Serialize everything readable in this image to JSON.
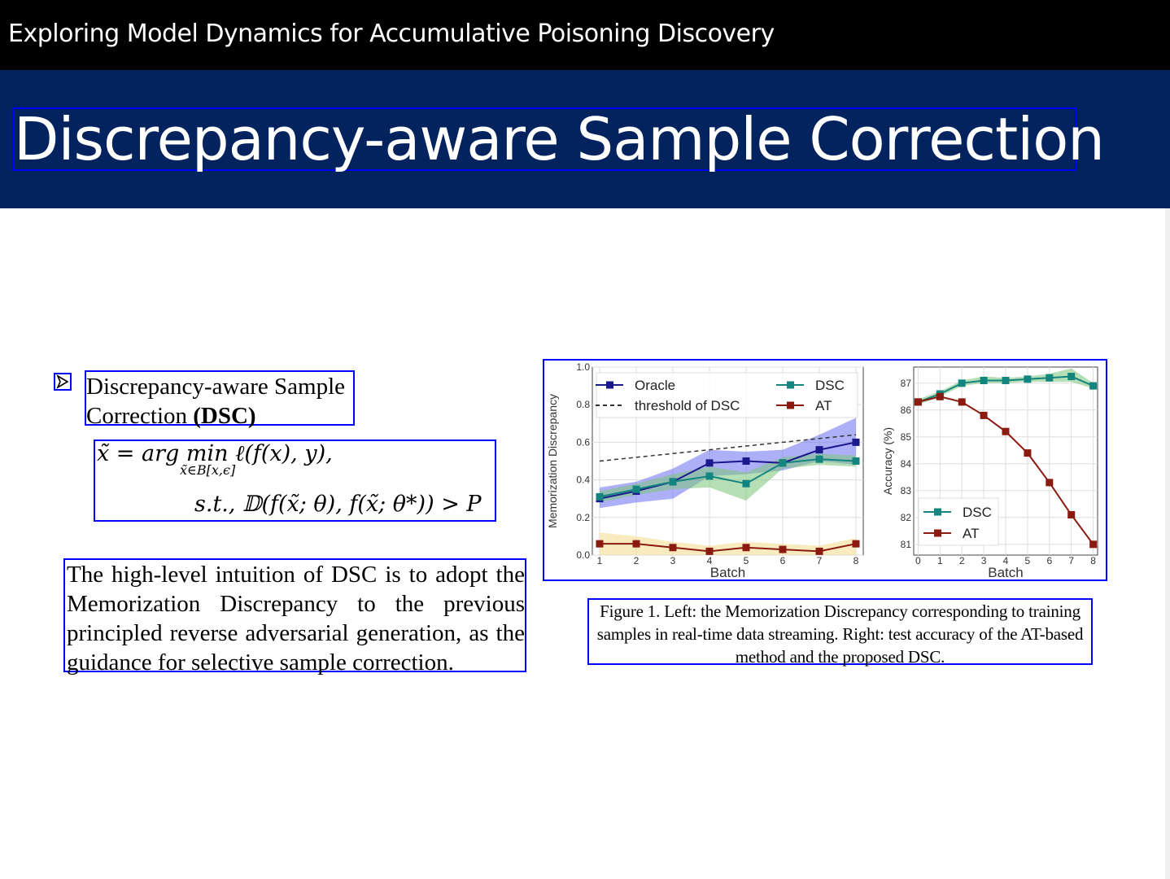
{
  "header": {
    "course_title": "Exploring Model Dynamics for Accumulative Poisoning Discovery"
  },
  "slide": {
    "title": "Discrepancy-aware Sample Correction",
    "bullet": {
      "text_plain": "Discrepancy-aware Sample Correction ",
      "text_bold": "(DSC)"
    },
    "formula": {
      "line1": "x̃ = arg  min  ℓ(f(x), y),",
      "line1_sub": "x̃∈B[x,ϵ]",
      "line2": "s.t., 𝔻(f(x̃; θ), f(x̃; θ*)) > P"
    },
    "body": "The high-level intuition of DSC is to adopt the Memorization Discrepancy to the previous principled reverse adversarial generation, as the guidance for selective sample correction.",
    "caption": "Figure 1. Left: the Memorization Discrepancy corresponding to training samples in real-time data streaming. Right: test accuracy of the AT-based method and the proposed DSC."
  },
  "chart_data": [
    {
      "type": "line",
      "xlabel": "Batch",
      "ylabel": "Memorization Discrepancy",
      "x": [
        1,
        2,
        3,
        4,
        5,
        6,
        7,
        8
      ],
      "xlim": [
        0.8,
        8.2
      ],
      "ylim": [
        0,
        1.0
      ],
      "yticks": [
        0.0,
        0.2,
        0.4,
        0.6,
        0.8,
        1.0
      ],
      "grid": true,
      "legend": "top",
      "series": [
        {
          "name": "Oracle",
          "color": "#1a1a8c",
          "marker": "square",
          "values": [
            0.3,
            0.34,
            0.39,
            0.49,
            0.5,
            0.49,
            0.56,
            0.6
          ],
          "band_lower": [
            0.25,
            0.28,
            0.3,
            0.42,
            0.43,
            0.45,
            0.5,
            0.48
          ],
          "band_upper": [
            0.36,
            0.39,
            0.46,
            0.56,
            0.55,
            0.56,
            0.64,
            0.73
          ],
          "band_color": "#6b70f0"
        },
        {
          "name": "threshold of DSC",
          "color": "#333333",
          "dash": true,
          "values": [
            0.5,
            0.52,
            0.54,
            0.56,
            0.58,
            0.6,
            0.62,
            0.64
          ]
        },
        {
          "name": "DSC",
          "color": "#13857e",
          "marker": "square",
          "values": [
            0.31,
            0.35,
            0.39,
            0.42,
            0.38,
            0.49,
            0.51,
            0.5
          ],
          "band_lower": [
            0.28,
            0.32,
            0.35,
            0.36,
            0.29,
            0.46,
            0.48,
            0.47
          ],
          "band_upper": [
            0.34,
            0.38,
            0.43,
            0.47,
            0.44,
            0.52,
            0.54,
            0.53
          ],
          "band_color": "#7cc47a"
        },
        {
          "name": "AT",
          "color": "#8b1a10",
          "marker": "square",
          "values": [
            0.06,
            0.06,
            0.04,
            0.02,
            0.04,
            0.03,
            0.02,
            0.06
          ],
          "band_lower": [
            0.0,
            0.0,
            0.0,
            0.0,
            0.0,
            0.0,
            0.0,
            0.0
          ],
          "band_upper": [
            0.12,
            0.1,
            0.07,
            0.05,
            0.07,
            0.06,
            0.05,
            0.09
          ],
          "band_color": "#f3dc8a"
        }
      ]
    },
    {
      "type": "line",
      "xlabel": "Batch",
      "ylabel": "Accuracy (%)",
      "x": [
        0,
        1,
        2,
        3,
        4,
        5,
        6,
        7,
        8
      ],
      "xlim": [
        -0.2,
        8.2
      ],
      "ylim": [
        80.6,
        87.6
      ],
      "yticks": [
        81,
        82,
        83,
        84,
        85,
        86,
        87
      ],
      "grid": true,
      "legend": "bottom-left",
      "series": [
        {
          "name": "DSC",
          "color": "#13857e",
          "marker": "square",
          "values": [
            86.3,
            86.6,
            87.0,
            87.1,
            87.1,
            87.15,
            87.2,
            87.25,
            86.9
          ],
          "band_lower": [
            86.2,
            86.5,
            86.9,
            87.0,
            87.0,
            87.05,
            87.05,
            87.05,
            86.8
          ],
          "band_upper": [
            86.4,
            86.7,
            87.1,
            87.25,
            87.2,
            87.25,
            87.35,
            87.55,
            87.0
          ],
          "band_color": "#7cc47a"
        },
        {
          "name": "AT",
          "color": "#8b1a10",
          "marker": "square",
          "values": [
            86.3,
            86.5,
            86.3,
            85.8,
            85.2,
            84.4,
            83.3,
            82.1,
            81.0
          ]
        }
      ]
    }
  ]
}
